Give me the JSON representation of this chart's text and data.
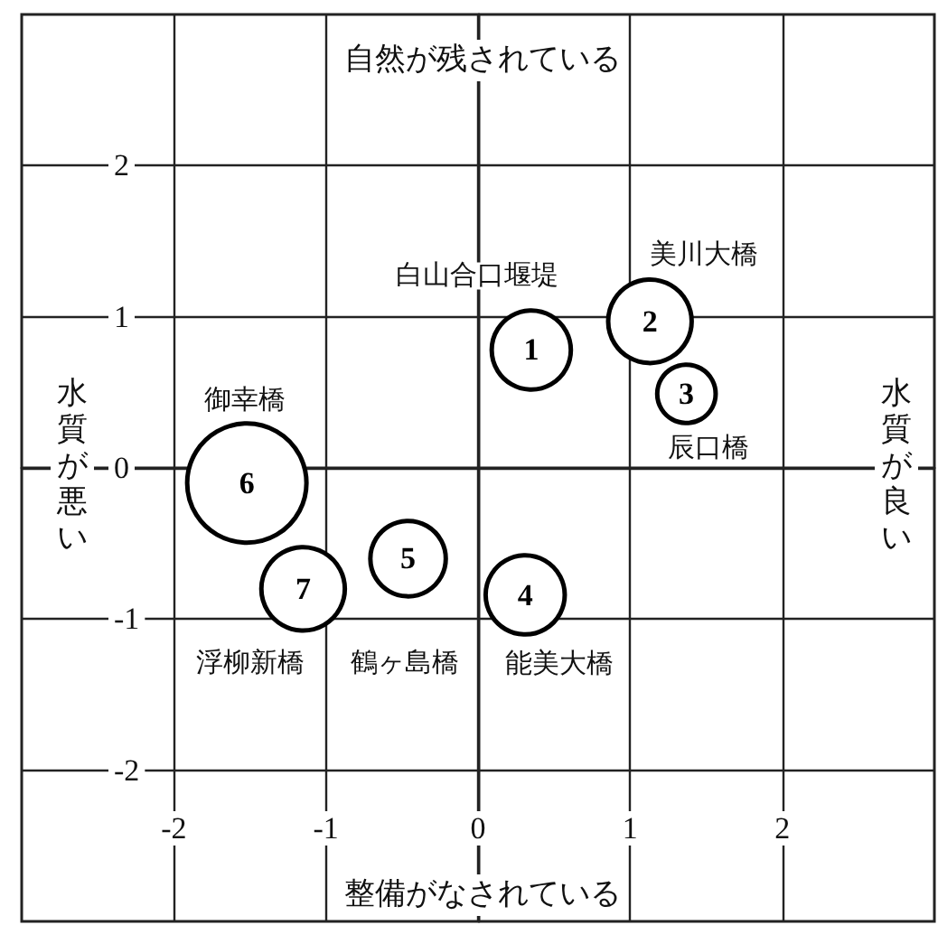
{
  "chart_data": {
    "type": "bubble",
    "xlabel": "整備がなされている",
    "x2label": "自然が残されている",
    "ylabel": "水質が悪い",
    "y2label": "水質が良い",
    "series": [
      {
        "name": "1",
        "color": "#000000",
        "x": [
          0.35
        ],
        "values": [
          0.78
        ],
        "sizes": [
          0.44
        ]
      },
      {
        "name": "2",
        "color": "#000000",
        "x": [
          1.13
        ],
        "values": [
          0.97
        ],
        "sizes": [
          0.49
        ]
      },
      {
        "name": "3",
        "color": "#000000",
        "x": [
          1.37
        ],
        "values": [
          0.49
        ],
        "sizes": [
          0.24
        ]
      },
      {
        "name": "4",
        "color": "#000000",
        "x": [
          0.31
        ],
        "values": [
          -0.84
        ],
        "sizes": [
          0.44
        ]
      },
      {
        "name": "5",
        "color": "#000000",
        "x": [
          -0.46
        ],
        "values": [
          -0.6
        ],
        "sizes": [
          0.4
        ]
      },
      {
        "name": "6",
        "color": "#000000",
        "x": [
          -1.52
        ],
        "values": [
          -0.1
        ],
        "sizes": [
          1
        ]
      },
      {
        "name": "7",
        "color": "#000000",
        "x": [
          -1.15
        ],
        "values": [
          -0.8
        ],
        "sizes": [
          0.49
        ]
      }
    ],
    "xlim": [
      -3,
      3
    ],
    "ylim": [
      -3,
      3
    ],
    "xticks": [
      -2,
      -1,
      0,
      1,
      2
    ],
    "yticks": [
      -2,
      -1,
      0,
      1,
      2
    ],
    "grid": true,
    "annotations": [
      "白山合口堰堤",
      "美川大橋",
      "辰口橋",
      "能美大橋",
      "鶴ヶ島橋",
      "御幸橋",
      "浮柳新橋"
    ]
  }
}
